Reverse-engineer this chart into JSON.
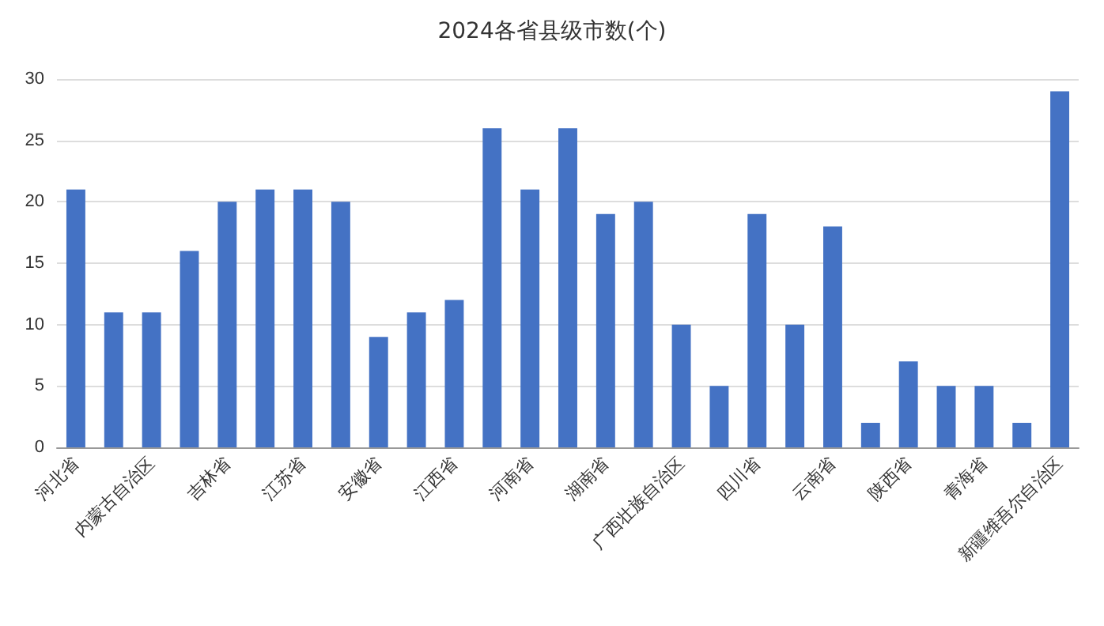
{
  "chart_data": {
    "type": "bar",
    "title": "2024各省县级市数(个)",
    "categories": [
      "河北省",
      null,
      "内蒙古自治区",
      null,
      "吉林省",
      null,
      "江苏省",
      null,
      "安徽省",
      null,
      "江西省",
      null,
      "河南省",
      null,
      "湖南省",
      null,
      "广西壮族自治区",
      null,
      "四川省",
      null,
      "云南省",
      null,
      "陕西省",
      null,
      "青海省",
      null,
      "新疆维吾尔自治区"
    ],
    "values": [
      21,
      11,
      11,
      16,
      20,
      21,
      21,
      20,
      9,
      11,
      12,
      26,
      21,
      26,
      19,
      20,
      10,
      5,
      19,
      10,
      18,
      2,
      7,
      5,
      5,
      2,
      29
    ],
    "color": "#4472c4",
    "ylim": [
      0,
      30
    ],
    "yticks": [
      0,
      5,
      10,
      15,
      20,
      25,
      30
    ],
    "grid": "y"
  }
}
